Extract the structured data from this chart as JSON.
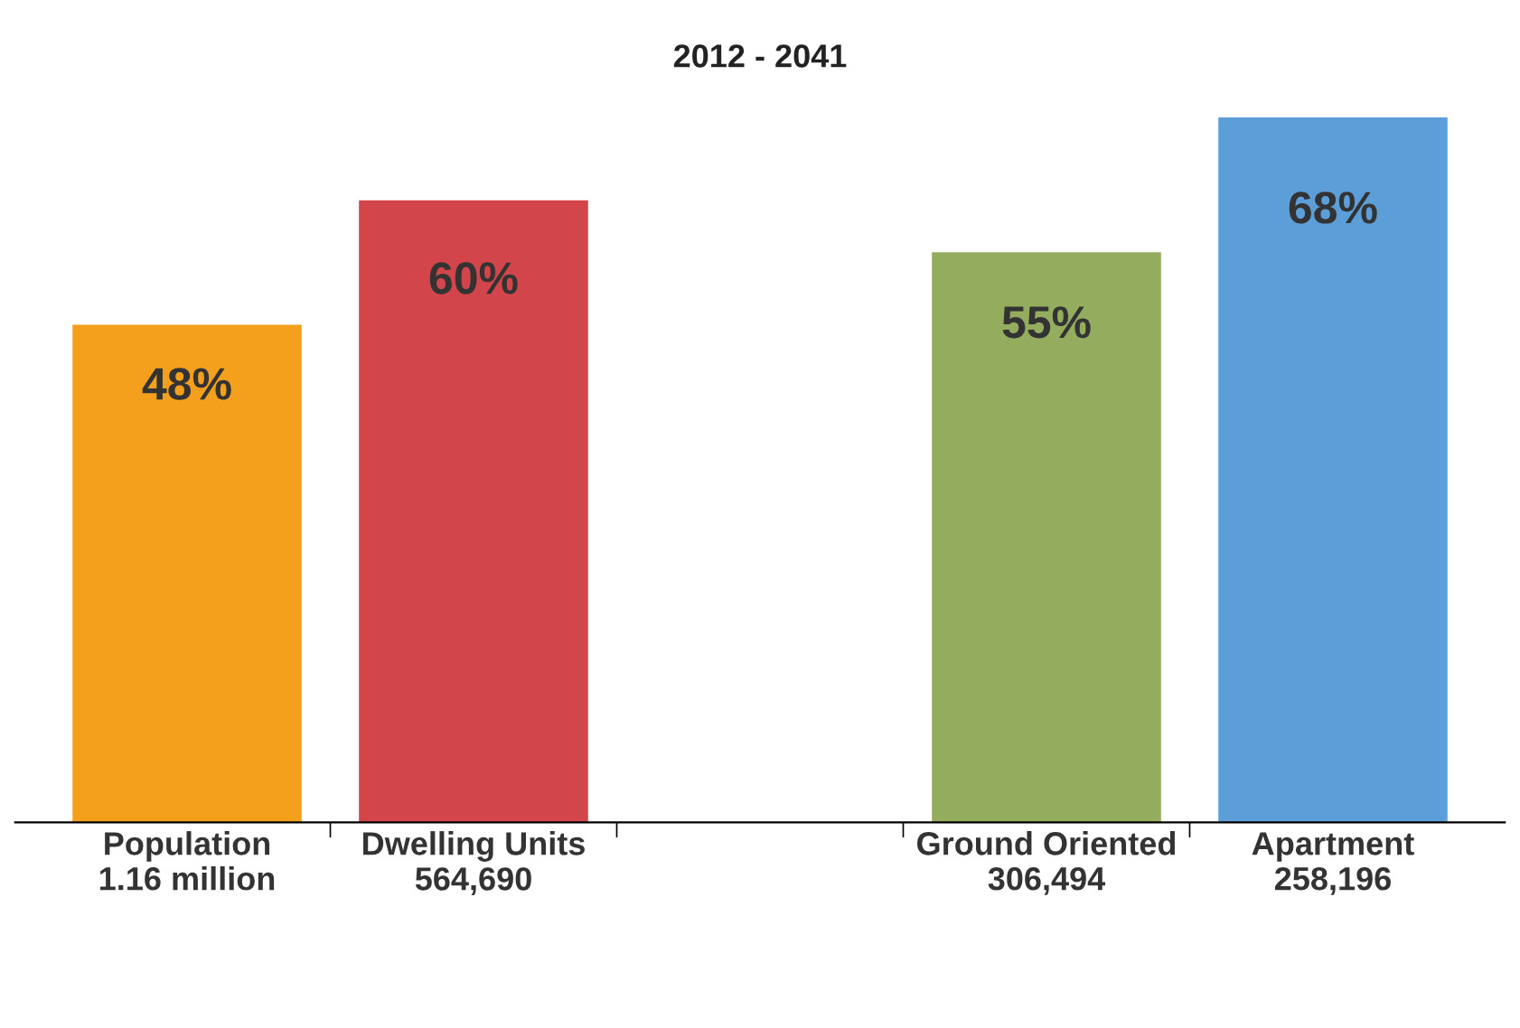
{
  "chart_data": {
    "type": "bar",
    "title": "2012 - 2041",
    "categories": [
      "Population\n1.16 million",
      "Dwelling Units\n564,690",
      null,
      "Ground Oriented\n306,494",
      "Apartment\n258,196"
    ],
    "values": [
      48,
      60,
      null,
      55,
      68
    ],
    "colors": [
      "#f5a01c",
      "#d2454b",
      "#ffffff",
      "#93ac5e",
      "#5c9fd8"
    ],
    "value_labels": [
      "48%",
      "60%",
      null,
      "55%",
      "68%"
    ],
    "tick_labels": "x",
    "grid": false,
    "legend": false
  }
}
